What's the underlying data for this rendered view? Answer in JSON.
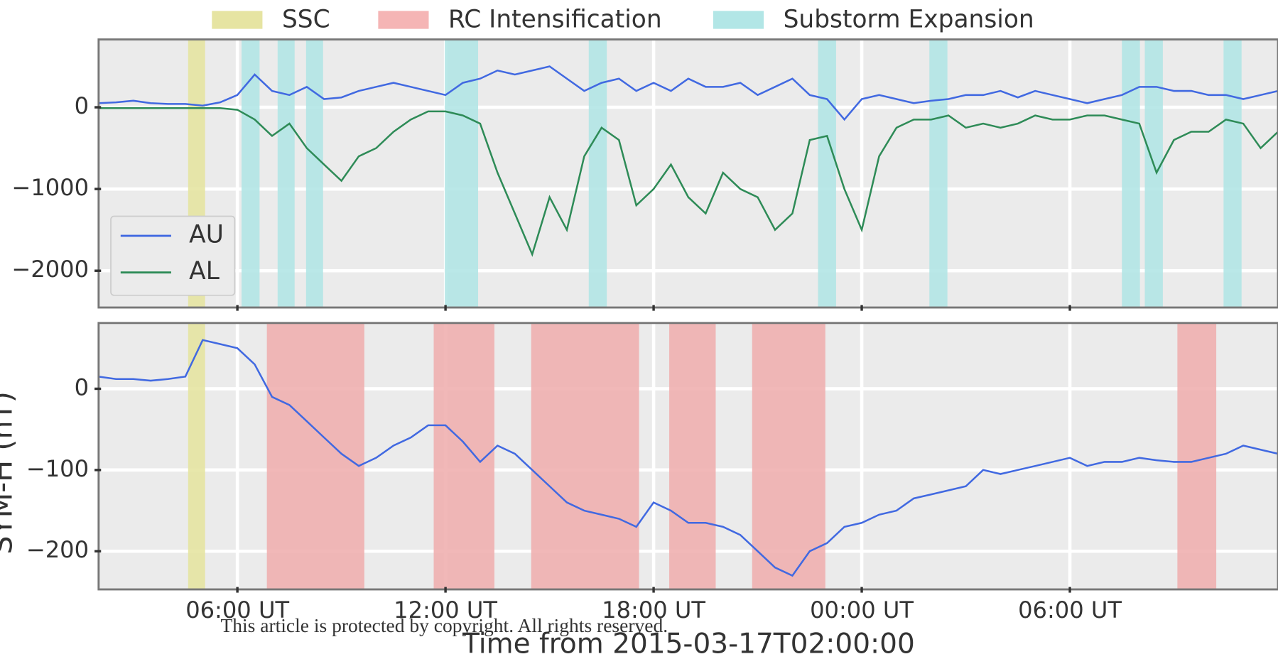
{
  "chart_data": [
    {
      "type": "line",
      "x": [
        0,
        0.5,
        1,
        1.5,
        2,
        2.5,
        3,
        3.5,
        4,
        4.5,
        5,
        5.5,
        6,
        6.5,
        7,
        7.5,
        8,
        8.5,
        9,
        9.5,
        10,
        10.5,
        11,
        11.5,
        12,
        12.5,
        13,
        13.5,
        14,
        14.5,
        15,
        15.5,
        16,
        16.5,
        17,
        17.5,
        18,
        18.5,
        19,
        19.5,
        20,
        20.5,
        21,
        21.5,
        22,
        22.5,
        23,
        23.5,
        24,
        24.5,
        25,
        25.5,
        26,
        26.5,
        27,
        27.5,
        28,
        28.5,
        29,
        29.5,
        30,
        30.5,
        31,
        31.5,
        32,
        32.5,
        33,
        33.5,
        34
      ],
      "series": [
        {
          "name": "AU",
          "color": "#4169e1",
          "values": [
            50,
            60,
            80,
            50,
            40,
            40,
            20,
            60,
            150,
            400,
            200,
            150,
            250,
            100,
            120,
            200,
            250,
            300,
            250,
            200,
            150,
            300,
            350,
            450,
            400,
            450,
            500,
            350,
            200,
            300,
            350,
            200,
            300,
            200,
            350,
            250,
            250,
            300,
            150,
            250,
            350,
            150,
            100,
            -150,
            100,
            150,
            100,
            50,
            80,
            100,
            150,
            150,
            200,
            120,
            200,
            150,
            100,
            50,
            100,
            150,
            250,
            250,
            200,
            200,
            150,
            150,
            100,
            150,
            200
          ]
        },
        {
          "name": "AL",
          "color": "#2e8b57",
          "values": [
            -10,
            -10,
            -10,
            -10,
            -10,
            -10,
            -10,
            -10,
            -30,
            -150,
            -350,
            -200,
            -500,
            -700,
            -900,
            -600,
            -500,
            -300,
            -150,
            -50,
            -50,
            -100,
            -200,
            -800,
            -1300,
            -1800,
            -1100,
            -1500,
            -600,
            -250,
            -400,
            -1200,
            -1000,
            -700,
            -1100,
            -1300,
            -800,
            -1000,
            -1100,
            -1500,
            -1300,
            -400,
            -350,
            -1000,
            -1500,
            -600,
            -250,
            -150,
            -150,
            -100,
            -250,
            -200,
            -250,
            -200,
            -100,
            -150,
            -150,
            -100,
            -100,
            -150,
            -200,
            -800,
            -400,
            -300,
            -300,
            -150,
            -200,
            -500,
            -300
          ]
        }
      ],
      "bands": [
        {
          "name": "SSC",
          "color": "#e6e4a2",
          "intervals": [
            [
              2.58,
              3.07
            ]
          ]
        },
        {
          "name": "RC Intensification",
          "color": "#f5b5b5",
          "intervals": []
        },
        {
          "name": "Substorm Expansion",
          "color": "#b2e6e6",
          "intervals": [
            [
              4.12,
              4.64
            ],
            [
              5.16,
              5.65
            ],
            [
              5.98,
              6.47
            ],
            [
              9.98,
              10.94
            ],
            [
              14.13,
              14.65
            ],
            [
              20.74,
              21.26
            ],
            [
              23.95,
              24.47
            ],
            [
              29.5,
              30.02
            ],
            [
              30.16,
              30.68
            ],
            [
              32.43,
              32.95
            ]
          ]
        }
      ],
      "xlim": [
        0,
        34
      ],
      "xticks": [
        {
          "value": 4,
          "label": "06:00 UT"
        },
        {
          "value": 10,
          "label": "12:00 UT"
        },
        {
          "value": 16,
          "label": "18:00 UT"
        },
        {
          "value": 22,
          "label": "00:00 UT"
        },
        {
          "value": 28,
          "label": "06:00 UT"
        }
      ],
      "ylim": [
        -2450,
        830
      ],
      "yticks": [
        {
          "value": -2000,
          "label": "−2000"
        },
        {
          "value": -1000,
          "label": "−1000"
        },
        0
      ],
      "grid": true,
      "legend": "lower left"
    },
    {
      "type": "line",
      "xlabel": "Time from 2015-03-17T02:00:00",
      "ylabel": "SYM-H (nT)",
      "x": [
        0,
        0.5,
        1,
        1.5,
        2,
        2.5,
        3,
        3.5,
        4,
        4.5,
        5,
        5.5,
        6,
        6.5,
        7,
        7.5,
        8,
        8.5,
        9,
        9.5,
        10,
        10.5,
        11,
        11.5,
        12,
        12.5,
        13,
        13.5,
        14,
        14.5,
        15,
        15.5,
        16,
        16.5,
        17,
        17.5,
        18,
        18.5,
        19,
        19.5,
        20,
        20.5,
        21,
        21.5,
        22,
        22.5,
        23,
        23.5,
        24,
        24.5,
        25,
        25.5,
        26,
        26.5,
        27,
        27.5,
        28,
        28.5,
        29,
        29.5,
        30,
        30.5,
        31,
        31.5,
        32,
        32.5,
        33,
        33.5,
        34
      ],
      "color": "#4169e1",
      "values": [
        15,
        12,
        12,
        10,
        12,
        15,
        60,
        55,
        50,
        30,
        -10,
        -20,
        -40,
        -60,
        -80,
        -95,
        -85,
        -70,
        -60,
        -45,
        -45,
        -65,
        -90,
        -70,
        -80,
        -100,
        -120,
        -140,
        -150,
        -155,
        -160,
        -170,
        -140,
        -150,
        -165,
        -165,
        -170,
        -180,
        -200,
        -220,
        -230,
        -200,
        -190,
        -170,
        -165,
        -155,
        -150,
        -135,
        -130,
        -125,
        -120,
        -100,
        -105,
        -100,
        -95,
        -90,
        -85,
        -95,
        -90,
        -90,
        -85,
        -88,
        -90,
        -90,
        -85,
        -80,
        -70,
        -75,
        -80
      ],
      "bands": [
        {
          "color": "#e6e4a2",
          "intervals": [
            [
              2.58,
              3.07
            ]
          ]
        },
        {
          "color": "#f0b0b0",
          "intervals": [
            [
              4.85,
              7.66
            ],
            [
              9.66,
              11.41
            ],
            [
              12.47,
              15.58
            ],
            [
              16.45,
              17.79
            ],
            [
              18.84,
              20.95
            ],
            [
              31.1,
              32.22
            ]
          ]
        }
      ],
      "xlim": [
        0,
        34
      ],
      "xticks": [
        {
          "value": 4,
          "label": "06:00 UT"
        },
        {
          "value": 10,
          "label": "12:00 UT"
        },
        {
          "value": 16,
          "label": "18:00 UT"
        },
        {
          "value": 22,
          "label": "00:00 UT"
        },
        {
          "value": 28,
          "label": "06:00 UT"
        }
      ],
      "ylim": [
        -247,
        81
      ],
      "yticks": [
        {
          "value": -200,
          "label": "−200"
        },
        {
          "value": -100,
          "label": "−100"
        },
        0
      ],
      "grid": true
    }
  ],
  "watermark": "This article is protected by copyright. All rights reserved."
}
